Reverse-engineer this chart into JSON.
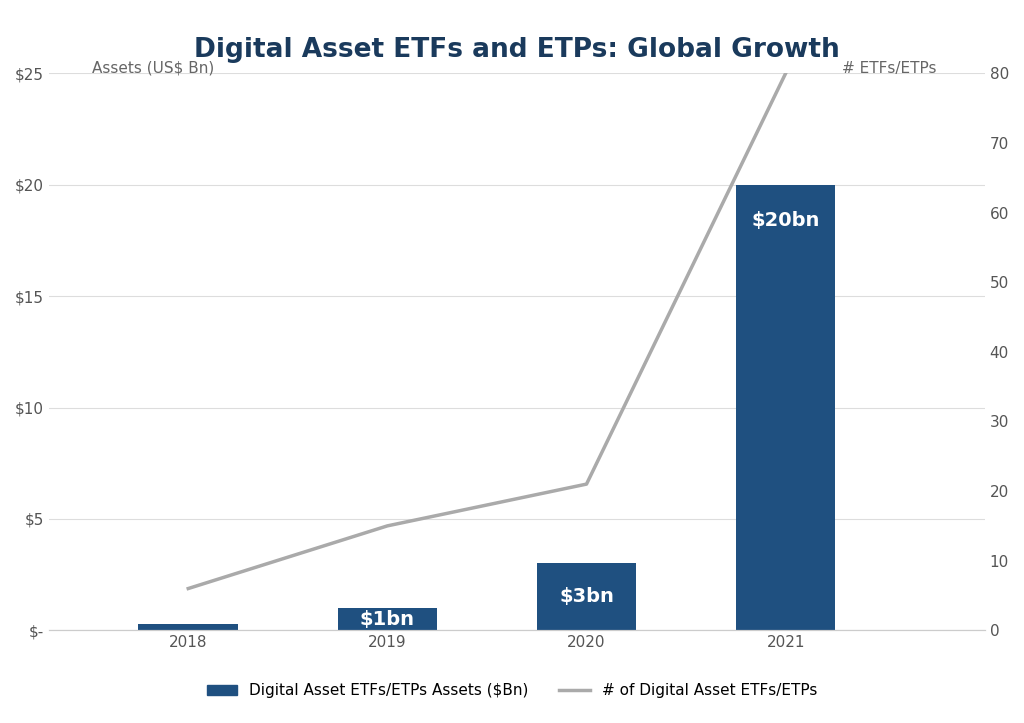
{
  "title": "Digital Asset ETFs and ETPs: Global Growth",
  "years": [
    2018,
    2019,
    2020,
    2021
  ],
  "bar_values": [
    0.3,
    1,
    3,
    20
  ],
  "bar_labels": [
    "",
    "$1bn",
    "$3bn",
    "$20bn"
  ],
  "line_values": [
    6,
    15,
    21,
    80
  ],
  "bar_color": "#1f5080",
  "line_color": "#aaaaaa",
  "ylim_left": [
    0,
    25
  ],
  "ylim_right": [
    0,
    80
  ],
  "yticks_left": [
    0,
    5,
    10,
    15,
    20,
    25
  ],
  "ytick_labels_left": [
    "$-",
    "$5",
    "$10",
    "$15",
    "$20",
    "$25"
  ],
  "yticks_right": [
    0,
    10,
    20,
    30,
    40,
    50,
    60,
    70,
    80
  ],
  "ylabel_left": "Assets (US$ Bn)",
  "ylabel_right": "# ETFs/ETPs",
  "legend_bar": "Digital Asset ETFs/ETPs Assets ($Bn)",
  "legend_line": "# of Digital Asset ETFs/ETPs",
  "background_color": "#ffffff",
  "bar_label_fontsize": 14,
  "title_fontsize": 19,
  "axis_label_fontsize": 11,
  "tick_fontsize": 11,
  "bar_width": 0.5,
  "xlim": [
    2017.3,
    2022.0
  ]
}
